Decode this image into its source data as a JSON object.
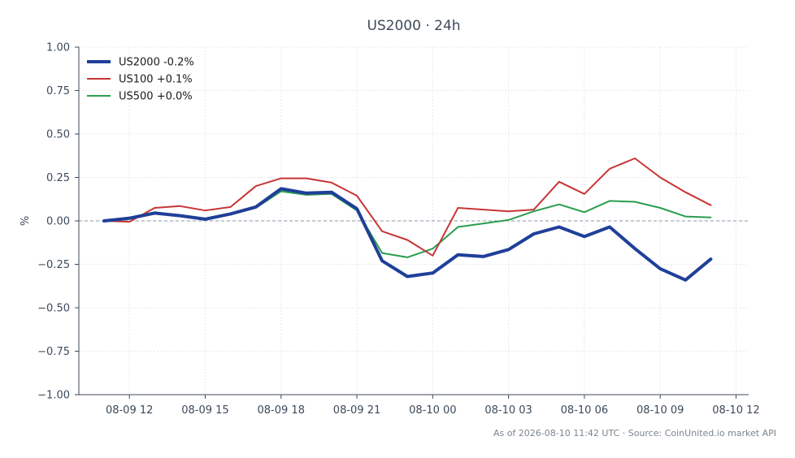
{
  "chart_data": {
    "type": "line",
    "title": "US2000 · 24h",
    "ylabel": "%",
    "xlabel": "",
    "ylim": [
      -1.0,
      1.0
    ],
    "xlim": [
      "2026-08-09T10:00",
      "2026-08-10T12:30"
    ],
    "yticks": [
      1.0,
      0.75,
      0.5,
      0.25,
      0.0,
      -0.25,
      -0.5,
      -0.75,
      -1.0
    ],
    "ytick_labels": [
      "1.00",
      "0.75",
      "0.50",
      "0.25",
      "0.00",
      "−0.25",
      "−0.50",
      "−0.75",
      "−1.00"
    ],
    "xticks": [
      "2026-08-09T12:00",
      "2026-08-09T15:00",
      "2026-08-09T18:00",
      "2026-08-09T21:00",
      "2026-08-10T00:00",
      "2026-08-10T03:00",
      "2026-08-10T06:00",
      "2026-08-10T09:00",
      "2026-08-10T12:00"
    ],
    "xtick_labels": [
      "08-09 12",
      "08-09 15",
      "08-09 18",
      "08-09 21",
      "08-10 00",
      "08-10 03",
      "08-10 06",
      "08-10 09",
      "08-10 12"
    ],
    "grid": true,
    "zero_line": true,
    "legend_position": "top-left",
    "x": [
      "2026-08-09T11:00",
      "2026-08-09T12:00",
      "2026-08-09T13:00",
      "2026-08-09T14:00",
      "2026-08-09T15:00",
      "2026-08-09T16:00",
      "2026-08-09T17:00",
      "2026-08-09T18:00",
      "2026-08-09T19:00",
      "2026-08-09T20:00",
      "2026-08-09T21:00",
      "2026-08-09T22:00",
      "2026-08-09T23:00",
      "2026-08-10T00:00",
      "2026-08-10T01:00",
      "2026-08-10T02:00",
      "2026-08-10T03:00",
      "2026-08-10T04:00",
      "2026-08-10T05:00",
      "2026-08-10T06:00",
      "2026-08-10T07:00",
      "2026-08-10T08:00",
      "2026-08-10T09:00",
      "2026-08-10T10:00",
      "2026-08-10T11:00"
    ],
    "series": [
      {
        "name": "US2000 -0.2%",
        "color": "#1f3f99",
        "width": 4,
        "values": [
          0.0,
          0.015,
          0.045,
          0.03,
          0.01,
          0.04,
          0.08,
          0.185,
          0.16,
          0.165,
          0.07,
          -0.23,
          -0.32,
          -0.3,
          -0.195,
          -0.205,
          -0.165,
          -0.075,
          -0.035,
          -0.09,
          -0.035,
          -0.16,
          -0.275,
          -0.34,
          -0.22
        ]
      },
      {
        "name": "US100 +0.1%",
        "color": "#c73535",
        "width": 2,
        "values": [
          0.0,
          -0.005,
          0.075,
          0.085,
          0.06,
          0.08,
          0.2,
          0.245,
          0.245,
          0.22,
          0.145,
          -0.06,
          -0.11,
          -0.2,
          0.075,
          0.065,
          0.055,
          0.065,
          0.225,
          0.155,
          0.3,
          0.36,
          0.25,
          0.165,
          0.09
        ]
      },
      {
        "name": "US500 +0.0%",
        "color": "#2a9d4e",
        "width": 2,
        "values": [
          0.0,
          0.02,
          0.05,
          0.03,
          0.005,
          0.04,
          0.075,
          0.17,
          0.15,
          0.155,
          0.06,
          -0.185,
          -0.21,
          -0.16,
          -0.035,
          -0.015,
          0.005,
          0.055,
          0.095,
          0.05,
          0.115,
          0.11,
          0.075,
          0.025,
          0.02
        ]
      }
    ],
    "footnote": "As of 2026-08-10 11:42 UTC · Source: CoinUnited.io market API"
  }
}
